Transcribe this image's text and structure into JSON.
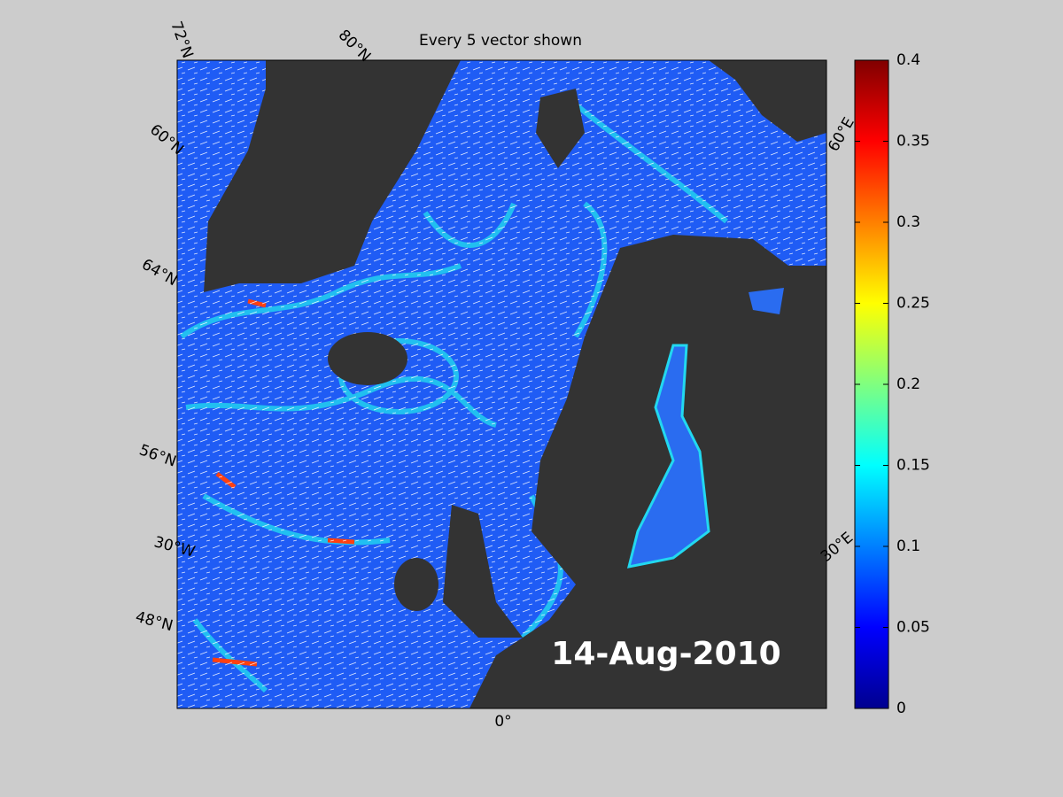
{
  "title": "Every 5 vector shown",
  "date": "14-Aug-2010",
  "graticule_labels": [
    "72°N",
    "80°N",
    "60°N",
    "64°N",
    "56°N",
    "30°W",
    "48°N",
    "0°",
    "30°E",
    "60°E"
  ],
  "colorbar": {
    "lim": [
      0,
      0.4
    ],
    "ticks": [
      0,
      0.05,
      0.1,
      0.15,
      0.2,
      0.25,
      0.3,
      0.35,
      0.4
    ]
  }
}
